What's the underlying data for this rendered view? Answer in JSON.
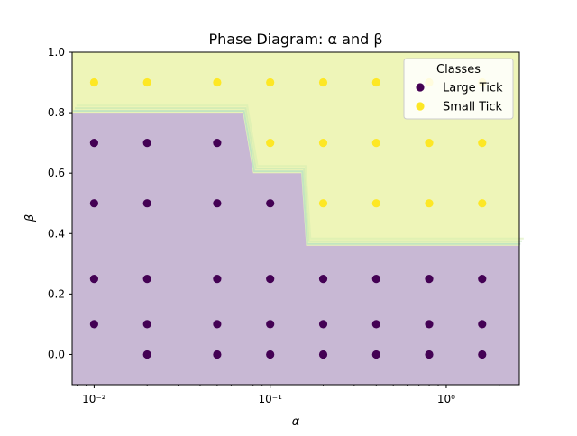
{
  "chart_data": {
    "type": "scatter",
    "title": "Phase Diagram: α and β",
    "xlabel": "α",
    "ylabel": "β",
    "x_scale": "log",
    "xlim": [
      0.0075,
      2.6
    ],
    "ylim": [
      -0.1,
      1.0
    ],
    "grid": false,
    "x_ticks": [
      {
        "value": 0.01,
        "label": "10⁻²"
      },
      {
        "value": 0.1,
        "label": "10⁻¹"
      },
      {
        "value": 1,
        "label": "10⁰"
      }
    ],
    "y_ticks": [
      {
        "value": 0.0,
        "label": "0.0"
      },
      {
        "value": 0.2,
        "label": "0.2"
      },
      {
        "value": 0.4,
        "label": "0.4"
      },
      {
        "value": 0.6,
        "label": "0.6"
      },
      {
        "value": 0.8,
        "label": "0.8"
      },
      {
        "value": 1.0,
        "label": "1.0"
      }
    ],
    "legend": {
      "title": "Classes",
      "placement": "top-right",
      "entries": [
        {
          "name": "Large Tick",
          "color": "#440154"
        },
        {
          "name": "Small Tick",
          "color": "#fde725"
        }
      ]
    },
    "regions": {
      "boundary": [
        [
          0.0075,
          0.8
        ],
        [
          0.07,
          0.8
        ],
        [
          0.08,
          0.6
        ],
        [
          0.15,
          0.6
        ],
        [
          0.16,
          0.36
        ],
        [
          2.6,
          0.36
        ]
      ],
      "below_color": "#c8b8d4",
      "above_color": "#eef5b8"
    },
    "series": [
      {
        "name": "Large Tick",
        "color": "#440154",
        "points": [
          [
            0.01,
            0.7
          ],
          [
            0.01,
            0.5
          ],
          [
            0.01,
            0.25
          ],
          [
            0.01,
            0.1
          ],
          [
            0.02,
            0.7
          ],
          [
            0.02,
            0.5
          ],
          [
            0.02,
            0.25
          ],
          [
            0.02,
            0.1
          ],
          [
            0.02,
            0.0
          ],
          [
            0.05,
            0.7
          ],
          [
            0.05,
            0.5
          ],
          [
            0.05,
            0.25
          ],
          [
            0.05,
            0.1
          ],
          [
            0.05,
            0.0
          ],
          [
            0.1,
            0.5
          ],
          [
            0.1,
            0.25
          ],
          [
            0.1,
            0.1
          ],
          [
            0.1,
            0.0
          ],
          [
            0.2,
            0.25
          ],
          [
            0.2,
            0.1
          ],
          [
            0.2,
            0.0
          ],
          [
            0.4,
            0.25
          ],
          [
            0.4,
            0.1
          ],
          [
            0.4,
            0.0
          ],
          [
            0.8,
            0.25
          ],
          [
            0.8,
            0.1
          ],
          [
            0.8,
            0.0
          ],
          [
            1.6,
            0.25
          ],
          [
            1.6,
            0.1
          ],
          [
            1.6,
            0.0
          ]
        ]
      },
      {
        "name": "Small Tick",
        "color": "#fde725",
        "points": [
          [
            0.01,
            0.9
          ],
          [
            0.02,
            0.9
          ],
          [
            0.05,
            0.9
          ],
          [
            0.1,
            0.9
          ],
          [
            0.2,
            0.9
          ],
          [
            0.4,
            0.9
          ],
          [
            0.8,
            0.9
          ],
          [
            1.6,
            0.9
          ],
          [
            0.1,
            0.7
          ],
          [
            0.2,
            0.7
          ],
          [
            0.4,
            0.7
          ],
          [
            0.8,
            0.7
          ],
          [
            1.6,
            0.7
          ],
          [
            0.2,
            0.5
          ],
          [
            0.4,
            0.5
          ],
          [
            0.8,
            0.5
          ],
          [
            1.6,
            0.5
          ]
        ]
      }
    ]
  }
}
